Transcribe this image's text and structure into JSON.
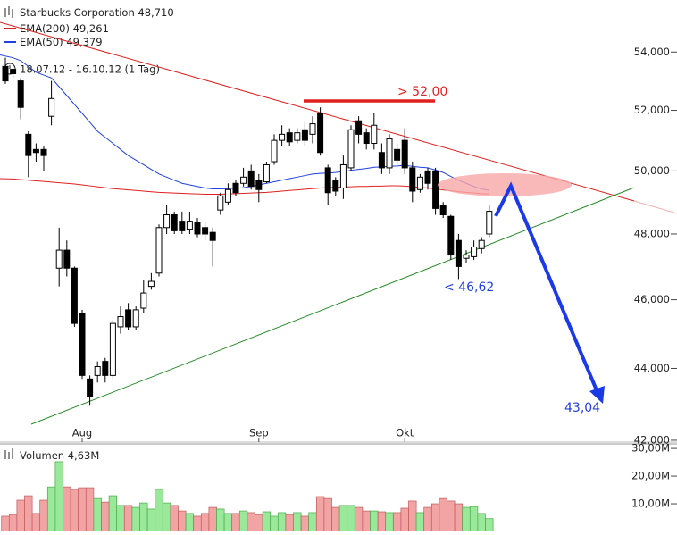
{
  "chart_data": [
    {
      "type": "candlestick",
      "title": "Starbucks Corporation",
      "last_price": "48,710",
      "range_label": "18.07.12 - 16.10.12 (1 Tag)",
      "log_scale": true,
      "categories": [
        null,
        null,
        null,
        null,
        null,
        null,
        null,
        null,
        null,
        null,
        "Aug",
        null,
        null,
        null,
        null,
        null,
        null,
        null,
        null,
        null,
        null,
        null,
        null,
        null,
        null,
        null,
        null,
        null,
        null,
        null,
        null,
        null,
        null,
        "Sep",
        null,
        null,
        null,
        null,
        null,
        null,
        null,
        null,
        null,
        null,
        null,
        null,
        null,
        null,
        null,
        null,
        null,
        null,
        "Okt",
        null,
        null,
        null,
        null,
        null,
        null,
        null,
        null,
        null,
        null,
        null
      ],
      "open": [
        53.5,
        53.4,
        53.0,
        51.2,
        50.7,
        50.7,
        51.8,
        46.95,
        47.5,
        46.95,
        45.6,
        43.7,
        43.8,
        44.2,
        43.8,
        45.2,
        45.7,
        45.2,
        45.75,
        46.4,
        46.8,
        48.2,
        48.6,
        48.4,
        48.15,
        48.35,
        48.2,
        48.05,
        48.75,
        49.0,
        49.6,
        49.6,
        50.0,
        49.7,
        49.65,
        50.3,
        51.0,
        51.25,
        51.0,
        51.35,
        51.2,
        51.9,
        50.1,
        49.7,
        49.45,
        50.1,
        51.65,
        51.25,
        50.9,
        50.6,
        50.1,
        50.7,
        51.0,
        50.1,
        49.4,
        50.0,
        50.0,
        48.9,
        48.55,
        47.8,
        47.25,
        47.3,
        47.55,
        48.0
      ],
      "high": [
        53.8,
        53.6,
        53.1,
        51.3,
        50.9,
        50.8,
        53.0,
        48.2,
        47.8,
        47.0,
        45.7,
        43.8,
        44.2,
        44.3,
        45.4,
        45.8,
        45.9,
        45.8,
        46.6,
        46.8,
        48.3,
        48.9,
        48.7,
        48.7,
        48.7,
        48.5,
        48.4,
        48.2,
        49.3,
        49.6,
        49.7,
        50.1,
        50.2,
        49.9,
        50.3,
        51.2,
        51.5,
        51.4,
        51.4,
        51.6,
        51.8,
        52.1,
        50.2,
        49.8,
        50.5,
        51.5,
        51.8,
        51.4,
        51.9,
        50.9,
        51.2,
        50.9,
        51.4,
        50.3,
        49.9,
        50.1,
        50.1,
        49.0,
        48.6,
        48.0,
        47.5,
        47.8,
        47.9,
        48.9
      ],
      "low": [
        52.9,
        53.1,
        51.7,
        49.8,
        50.3,
        50.0,
        51.5,
        46.4,
        46.7,
        45.2,
        43.7,
        42.95,
        43.6,
        43.6,
        43.7,
        45.0,
        45.1,
        45.1,
        45.6,
        46.3,
        46.7,
        48.0,
        48.0,
        48.0,
        48.0,
        47.9,
        47.8,
        47.0,
        48.6,
        48.9,
        49.2,
        49.5,
        49.4,
        49.0,
        49.6,
        50.2,
        50.8,
        50.8,
        50.9,
        50.8,
        50.9,
        50.5,
        48.9,
        49.2,
        49.1,
        50.0,
        50.9,
        50.7,
        50.7,
        49.9,
        49.9,
        50.2,
        49.9,
        49.0,
        49.3,
        49.4,
        48.6,
        48.5,
        47.2,
        46.62,
        47.1,
        47.2,
        47.4,
        47.9
      ],
      "close": [
        53.0,
        53.25,
        52.1,
        50.5,
        50.6,
        50.5,
        52.4,
        47.5,
        46.95,
        45.3,
        43.8,
        43.2,
        44.05,
        43.8,
        45.3,
        45.5,
        45.2,
        45.7,
        46.2,
        46.55,
        48.2,
        48.6,
        48.1,
        48.1,
        48.4,
        48.0,
        48.0,
        47.8,
        49.2,
        49.4,
        49.3,
        49.8,
        49.5,
        49.4,
        50.2,
        51.0,
        51.2,
        50.95,
        51.25,
        51.0,
        51.55,
        50.6,
        49.3,
        49.35,
        50.2,
        51.35,
        51.2,
        50.9,
        51.5,
        50.1,
        51.05,
        50.35,
        50.1,
        49.35,
        49.8,
        49.6,
        48.8,
        48.6,
        47.35,
        47.0,
        47.35,
        47.6,
        47.8,
        48.71
      ],
      "up_color": "#ffffff",
      "down_color": "#000000",
      "series": [
        {
          "name": "EMA(200)",
          "legend_value": "49,261",
          "color": "#e02020",
          "values": [
            49.75,
            49.74,
            49.72,
            49.7,
            49.68,
            49.66,
            49.64,
            49.62,
            49.6,
            49.58,
            49.55,
            49.52,
            49.49,
            49.46,
            49.43,
            49.41,
            49.39,
            49.37,
            49.35,
            49.33,
            49.31,
            49.3,
            49.29,
            49.28,
            49.27,
            49.26,
            49.25,
            49.25,
            49.25,
            49.26,
            49.27,
            49.28,
            49.29,
            49.3,
            49.31,
            49.33,
            49.35,
            49.37,
            49.39,
            49.41,
            49.43,
            49.45,
            49.46,
            49.47,
            49.48,
            49.49,
            49.5,
            49.5,
            49.51,
            49.51,
            49.52,
            49.52,
            49.51,
            49.49,
            49.47,
            49.45,
            49.42,
            49.39,
            49.36,
            49.33,
            49.31,
            49.29,
            49.27,
            49.261
          ]
        },
        {
          "name": "EMA(50)",
          "legend_value": "49,379",
          "color": "#2040e0",
          "values": [
            53.9,
            53.8,
            53.7,
            53.5,
            53.3,
            53.2,
            53.1,
            52.8,
            52.5,
            52.2,
            51.9,
            51.6,
            51.3,
            51.1,
            50.9,
            50.7,
            50.5,
            50.35,
            50.2,
            50.05,
            49.9,
            49.8,
            49.7,
            49.6,
            49.55,
            49.5,
            49.45,
            49.42,
            49.42,
            49.43,
            49.44,
            49.46,
            49.5,
            49.55,
            49.6,
            49.65,
            49.7,
            49.75,
            49.8,
            49.85,
            49.9,
            49.92,
            49.93,
            49.95,
            49.98,
            50.02,
            50.05,
            50.08,
            50.12,
            50.13,
            50.15,
            50.16,
            50.18,
            50.15,
            50.12,
            50.1,
            50.03,
            49.95,
            49.82,
            49.7,
            49.6,
            49.5,
            49.42,
            49.379
          ]
        }
      ],
      "ylim": [
        41.95,
        55.85
      ],
      "yticks": [
        {
          "value": 54,
          "label": "54,000"
        },
        {
          "value": 52,
          "label": "52,000"
        },
        {
          "value": 50,
          "label": "50,000"
        },
        {
          "value": 48,
          "label": "48,000"
        },
        {
          "value": 46,
          "label": "46,000"
        },
        {
          "value": 44,
          "label": "44,000"
        },
        {
          "value": 42,
          "label": "42,000"
        }
      ],
      "annotations": [
        {
          "text": "> 52,00"
        },
        {
          "text": "< 46,62"
        },
        {
          "text": "43,04"
        }
      ]
    },
    {
      "type": "bar",
      "title": "Volumen",
      "last_value": "4,63M",
      "up_color": "#9ae89a",
      "down_color": "#f2a3a3",
      "values": [
        5.5,
        6.1,
        11.3,
        12.9,
        6.5,
        11.3,
        16.1,
        25.2,
        16.1,
        15.2,
        15.8,
        15.8,
        11.9,
        10.6,
        12.9,
        9.4,
        9.4,
        8.7,
        10.3,
        8.1,
        15.2,
        10.3,
        9.4,
        7.4,
        6.5,
        5.5,
        6.5,
        8.7,
        8.1,
        6.5,
        6.5,
        7.4,
        6.8,
        6.1,
        7.1,
        5.5,
        6.8,
        6.1,
        6.8,
        5.5,
        6.8,
        12.6,
        11.9,
        8.7,
        9.4,
        9.4,
        8.7,
        7.4,
        7.4,
        7.1,
        6.8,
        6.8,
        8.4,
        11.0,
        6.8,
        8.7,
        10.0,
        11.9,
        11.0,
        10.0,
        8.7,
        9.0,
        6.5,
        4.63
      ],
      "ylim": [
        0,
        31
      ],
      "yticks": [
        {
          "value": 30,
          "label": "30,00M"
        },
        {
          "value": 20,
          "label": "20,00M"
        },
        {
          "value": 10,
          "label": "10,00M"
        }
      ]
    }
  ]
}
